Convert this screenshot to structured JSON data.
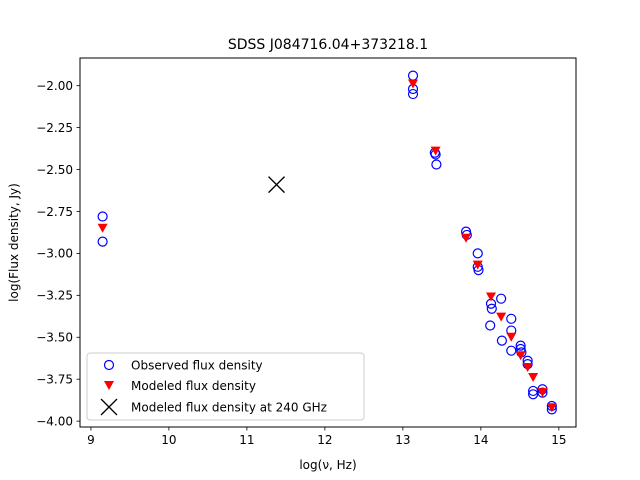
{
  "chart_data": {
    "type": "scatter",
    "title": "SDSS J084716.04+373218.1",
    "xlabel": "log(ν, Hz)",
    "ylabel": "log(Flux density, Jy)",
    "xlim": [
      8.86,
      15.22
    ],
    "ylim": [
      -4.035,
      -1.835
    ],
    "xticks": [
      9,
      10,
      11,
      12,
      13,
      14,
      15
    ],
    "xtick_labels": [
      "9",
      "10",
      "11",
      "12",
      "13",
      "14",
      "15"
    ],
    "yticks": [
      -2.0,
      -2.25,
      -2.5,
      -2.75,
      -3.0,
      -3.25,
      -3.5,
      -3.75,
      -4.0
    ],
    "ytick_labels": [
      "−2.00",
      "−2.25",
      "−2.50",
      "−2.75",
      "−3.00",
      "−3.25",
      "−3.50",
      "−3.75",
      "−4.00"
    ],
    "legend_position": "lower-left",
    "series": [
      {
        "name": "Observed flux density",
        "marker": "open-circle",
        "color": "#0000ff",
        "points": [
          [
            9.15,
            -2.78
          ],
          [
            9.15,
            -2.93
          ],
          [
            13.13,
            -1.94
          ],
          [
            13.13,
            -2.02
          ],
          [
            13.13,
            -2.05
          ],
          [
            13.41,
            -2.4
          ],
          [
            13.42,
            -2.41
          ],
          [
            13.43,
            -2.47
          ],
          [
            13.81,
            -2.87
          ],
          [
            13.82,
            -2.89
          ],
          [
            13.96,
            -3.0
          ],
          [
            13.96,
            -3.08
          ],
          [
            13.97,
            -3.1
          ],
          [
            14.13,
            -3.3
          ],
          [
            14.14,
            -3.33
          ],
          [
            14.12,
            -3.43
          ],
          [
            14.26,
            -3.27
          ],
          [
            14.27,
            -3.52
          ],
          [
            14.39,
            -3.39
          ],
          [
            14.39,
            -3.46
          ],
          [
            14.39,
            -3.58
          ],
          [
            14.51,
            -3.55
          ],
          [
            14.51,
            -3.57
          ],
          [
            14.52,
            -3.59
          ],
          [
            14.6,
            -3.64
          ],
          [
            14.6,
            -3.66
          ],
          [
            14.67,
            -3.82
          ],
          [
            14.67,
            -3.84
          ],
          [
            14.79,
            -3.81
          ],
          [
            14.79,
            -3.83
          ],
          [
            14.91,
            -3.91
          ],
          [
            14.91,
            -3.93
          ]
        ]
      },
      {
        "name": "Modeled flux density",
        "marker": "triangle-down",
        "color": "#ff0000",
        "points": [
          [
            9.15,
            -2.85
          ],
          [
            13.13,
            -1.99
          ],
          [
            13.42,
            -2.39
          ],
          [
            13.81,
            -2.91
          ],
          [
            13.96,
            -3.07
          ],
          [
            14.13,
            -3.26
          ],
          [
            14.26,
            -3.38
          ],
          [
            14.39,
            -3.5
          ],
          [
            14.51,
            -3.61
          ],
          [
            14.6,
            -3.68
          ],
          [
            14.67,
            -3.74
          ],
          [
            14.79,
            -3.83
          ],
          [
            14.91,
            -3.92
          ]
        ]
      },
      {
        "name": "Modeled flux density at 240 GHz",
        "marker": "x",
        "color": "#000000",
        "points": [
          [
            11.38,
            -2.59
          ]
        ]
      }
    ]
  }
}
